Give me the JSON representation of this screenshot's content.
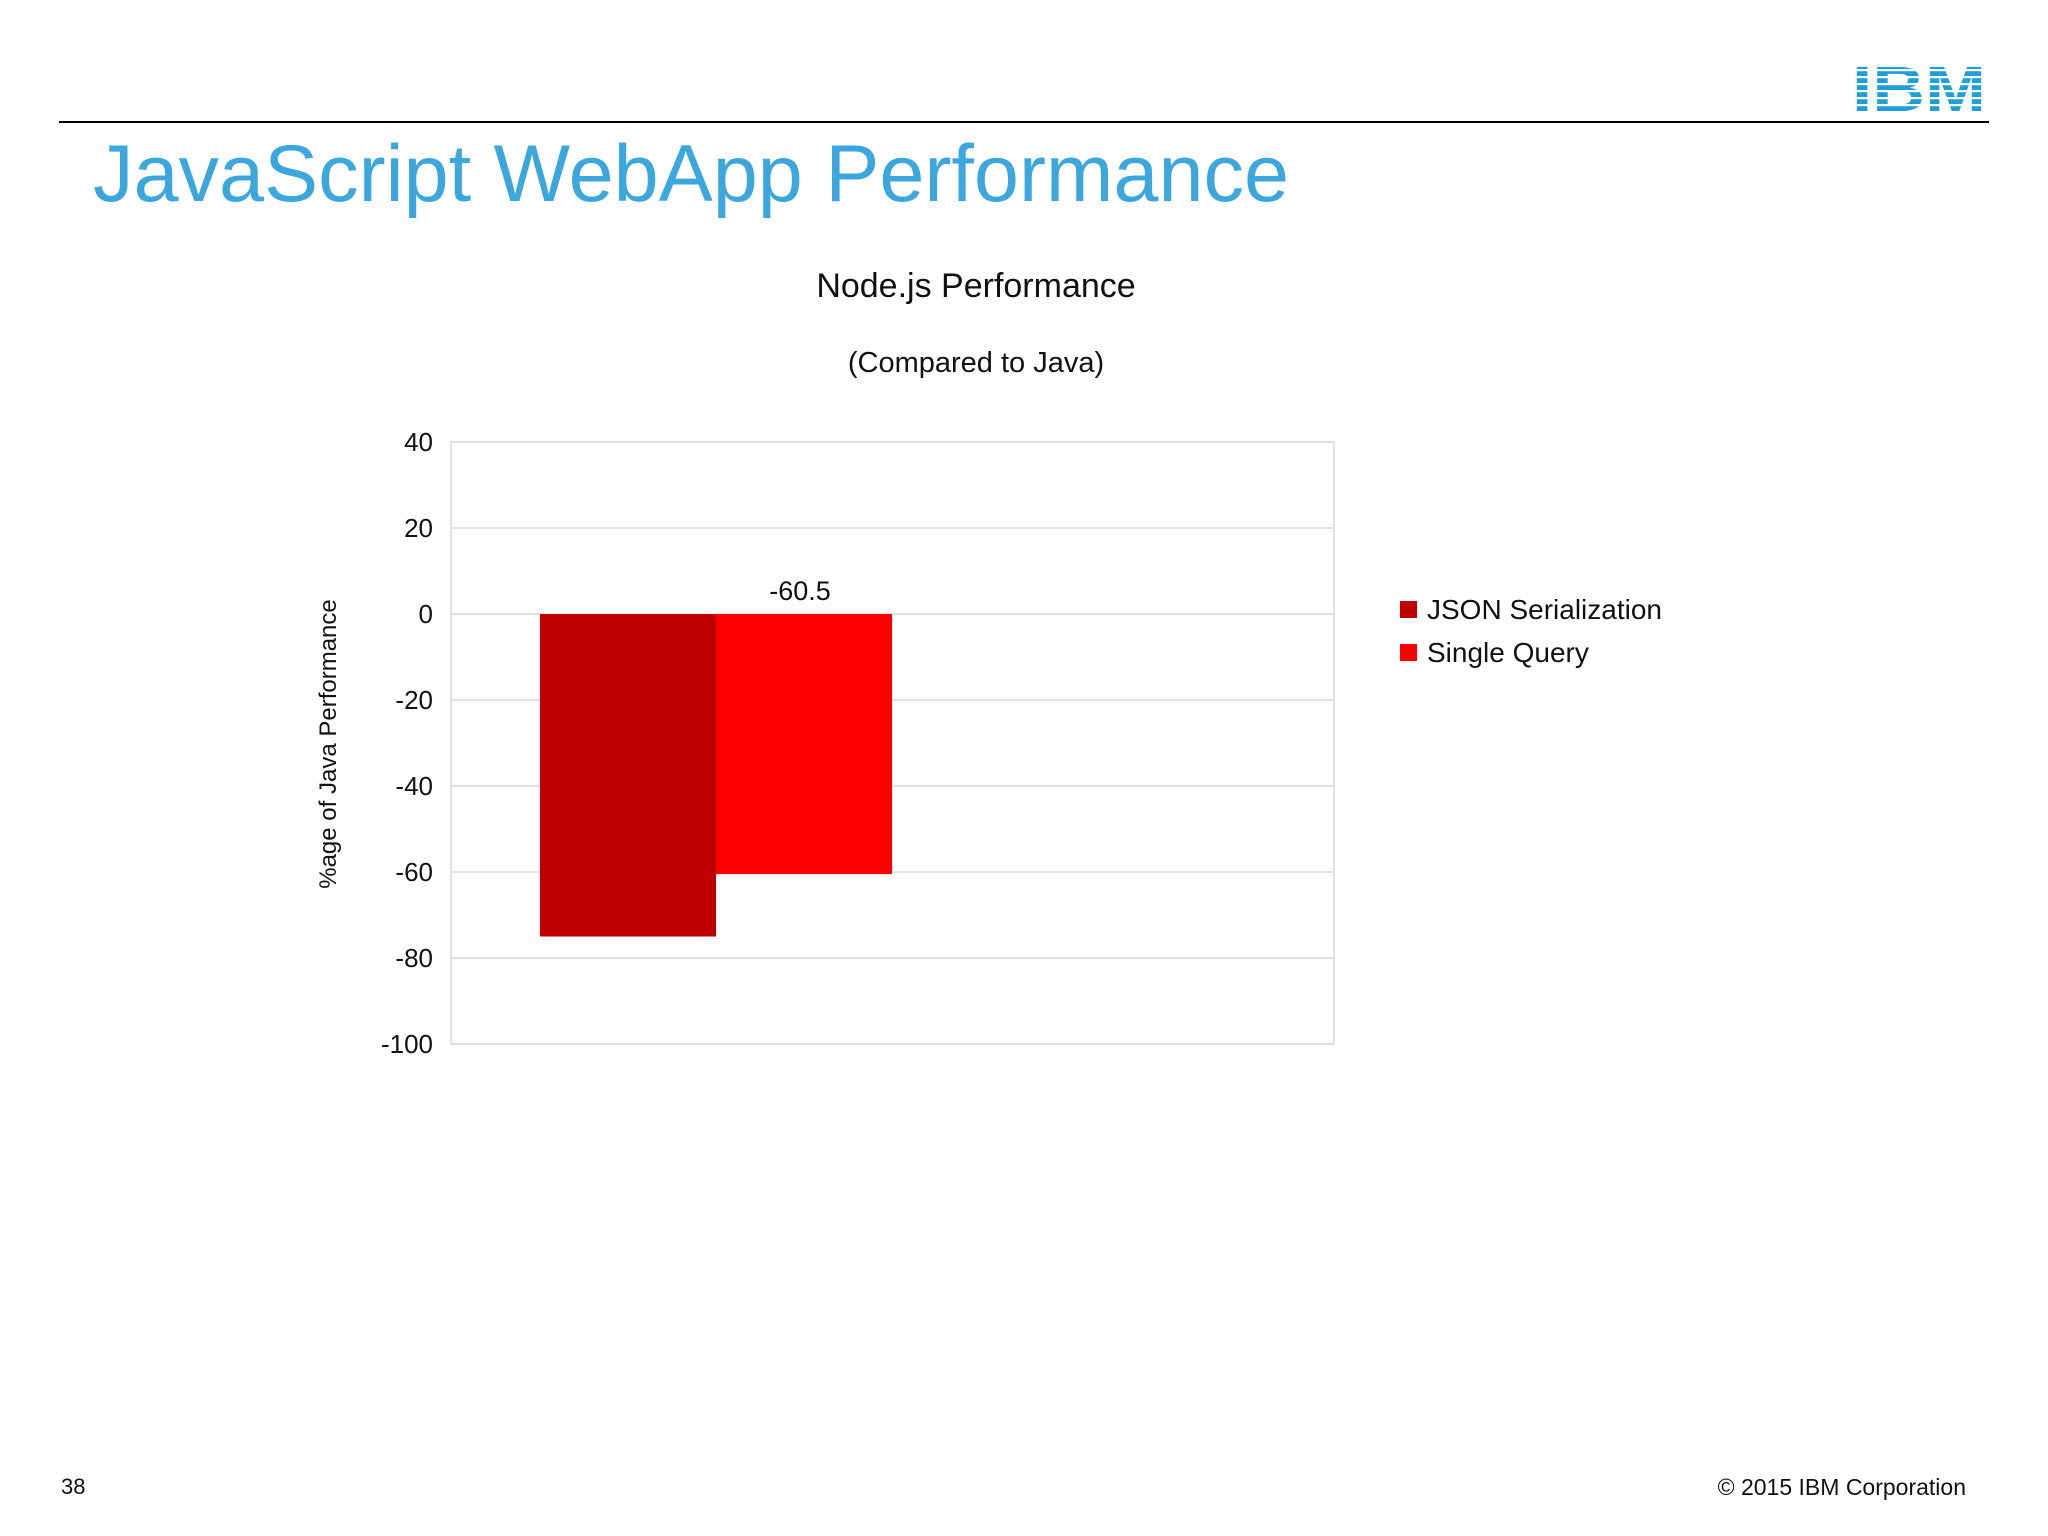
{
  "slide": {
    "title": "JavaScript WebApp Performance",
    "page_number": "38",
    "copyright": "© 2015 IBM Corporation",
    "logo_text": "IBM",
    "logo_color": "#1f9fd8",
    "title_color": "#3ba7dc"
  },
  "chart_data": {
    "type": "bar",
    "title": "Node.js Performance",
    "subtitle": "(Compared to Java)",
    "xlabel": "",
    "ylabel": "%age of Java Performance",
    "ylim": [
      -100,
      40
    ],
    "yticks": [
      "40",
      "20",
      "0",
      "-20",
      "-40",
      "-60",
      "-80",
      "-100"
    ],
    "grid": true,
    "legend_position": "right",
    "categories": [
      ""
    ],
    "series": [
      {
        "name": "JSON Serialization",
        "color": "#c00000",
        "values": [
          -75
        ]
      },
      {
        "name": "Single Query",
        "color": "#ff0000",
        "values": [
          -60.5
        ]
      }
    ],
    "data_labels": [
      {
        "series": 1,
        "text": "-60.5"
      }
    ]
  }
}
